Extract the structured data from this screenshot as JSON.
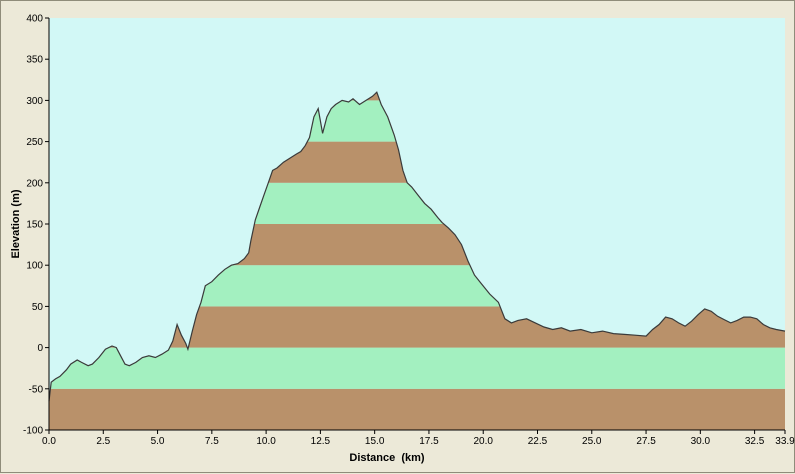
{
  "chart_data": {
    "type": "area",
    "title": "",
    "xlabel": "Distance  (km)",
    "ylabel": "Elevation (m)",
    "xlim": [
      0,
      33.9
    ],
    "ylim": [
      -100,
      400
    ],
    "x_ticks": [
      "0.0",
      "2.5",
      "5.0",
      "7.5",
      "10.0",
      "12.5",
      "15.0",
      "17.5",
      "20.0",
      "22.5",
      "25.0",
      "27.5",
      "30.0",
      "32.5",
      "33.9"
    ],
    "y_ticks": [
      "400",
      "350",
      "300",
      "250",
      "200",
      "150",
      "100",
      "50",
      "0",
      "-50",
      "-100"
    ],
    "grid": false,
    "legend": "none",
    "band_step": 50,
    "colors": {
      "plot_background": "#d2f8f6",
      "band_green": "#a3f0c0",
      "band_brown": "#b9916a",
      "profile_line": "#3a3a3a",
      "window_background": "#ece9d8"
    },
    "series": [
      {
        "x": [
          0.0,
          0.1,
          0.3,
          0.5,
          0.8,
          1.0,
          1.3,
          1.5,
          1.8,
          2.0,
          2.3,
          2.6,
          2.9,
          3.1,
          3.3,
          3.5,
          3.7,
          4.0,
          4.3,
          4.6,
          4.9,
          5.2,
          5.5,
          5.7,
          5.9,
          6.1,
          6.3,
          6.4,
          6.6,
          6.8,
          7.0,
          7.2,
          7.5,
          7.8,
          8.1,
          8.4,
          8.7,
          9.0,
          9.2,
          9.3,
          9.5,
          9.7,
          9.9,
          10.1,
          10.3,
          10.5,
          10.8,
          11.1,
          11.4,
          11.6,
          11.8,
          12.0,
          12.2,
          12.4,
          12.6,
          12.8,
          13.0,
          13.2,
          13.5,
          13.8,
          14.0,
          14.3,
          14.6,
          14.9,
          15.1,
          15.3,
          15.6,
          15.9,
          16.1,
          16.3,
          16.5,
          16.7,
          17.0,
          17.3,
          17.6,
          17.9,
          18.1,
          18.4,
          18.7,
          19.0,
          19.3,
          19.6,
          19.9,
          20.3,
          20.7,
          21.0,
          21.3,
          21.6,
          22.0,
          22.4,
          22.8,
          23.2,
          23.6,
          24.0,
          24.5,
          25.0,
          25.5,
          26.0,
          26.5,
          27.0,
          27.5,
          27.8,
          28.1,
          28.4,
          28.7,
          29.0,
          29.3,
          29.6,
          29.9,
          30.2,
          30.5,
          30.8,
          31.1,
          31.4,
          31.7,
          32.0,
          32.3,
          32.6,
          32.9,
          33.2,
          33.5,
          33.9
        ],
        "y": [
          -65,
          -42,
          -38,
          -35,
          -27,
          -20,
          -15,
          -18,
          -22,
          -20,
          -12,
          -2,
          2,
          0,
          -10,
          -20,
          -22,
          -18,
          -12,
          -10,
          -12,
          -8,
          -3,
          8,
          28,
          15,
          5,
          -2,
          20,
          40,
          55,
          75,
          80,
          88,
          95,
          100,
          102,
          108,
          115,
          130,
          155,
          170,
          185,
          200,
          215,
          218,
          225,
          230,
          235,
          238,
          245,
          255,
          280,
          290,
          260,
          280,
          290,
          295,
          300,
          298,
          302,
          295,
          300,
          305,
          310,
          295,
          280,
          258,
          240,
          215,
          200,
          195,
          185,
          175,
          168,
          158,
          152,
          145,
          137,
          125,
          105,
          88,
          78,
          65,
          55,
          35,
          30,
          33,
          35,
          30,
          25,
          22,
          24,
          20,
          22,
          18,
          20,
          17,
          16,
          15,
          14,
          22,
          28,
          37,
          35,
          30,
          26,
          32,
          40,
          47,
          44,
          38,
          34,
          30,
          33,
          37,
          37,
          35,
          28,
          24,
          22,
          20
        ]
      }
    ]
  }
}
